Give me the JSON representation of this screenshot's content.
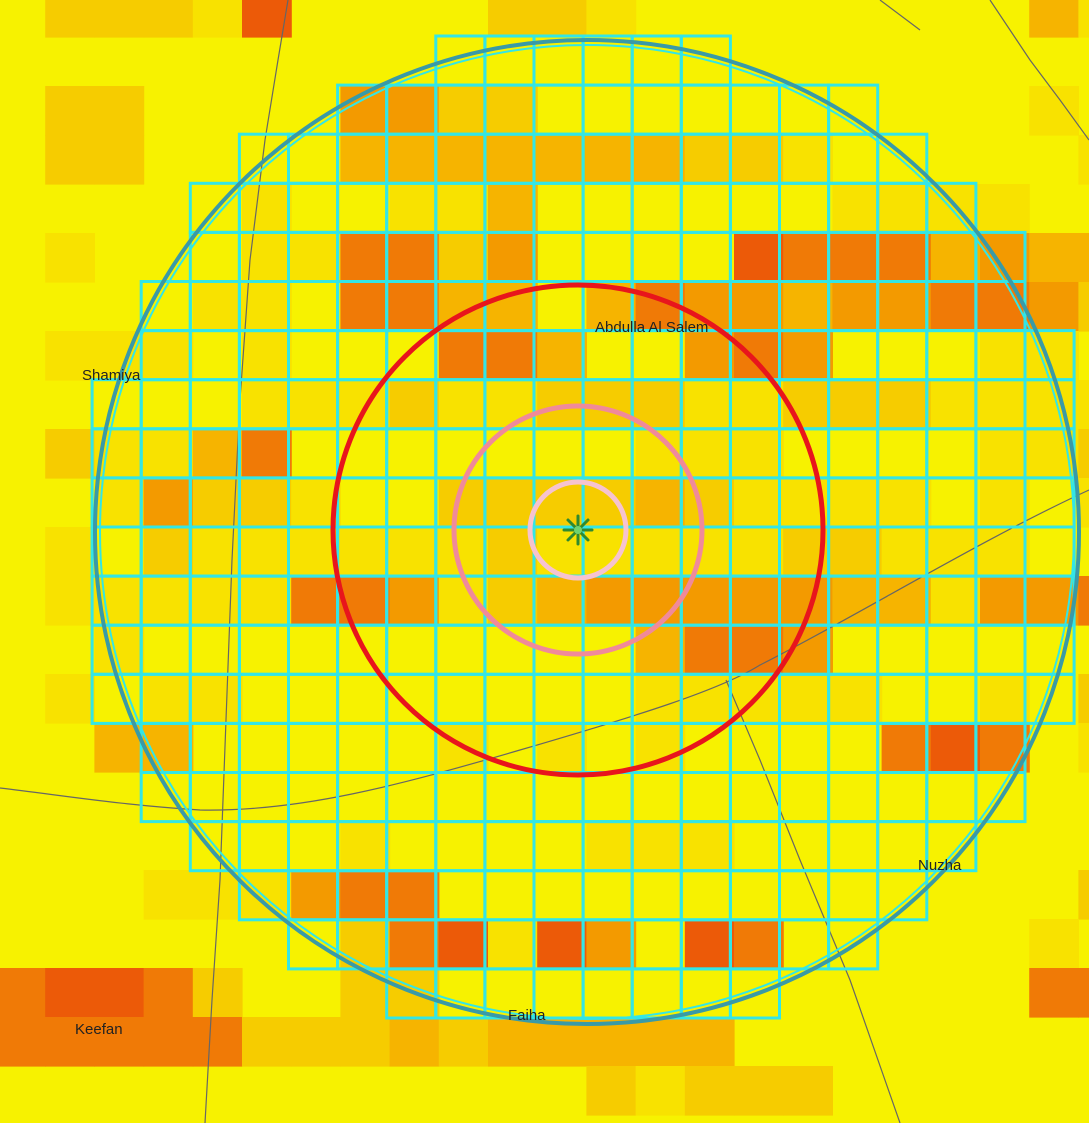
{
  "map": {
    "labels": [
      {
        "key": "abdulla",
        "text": "Abdulla Al Salem"
      },
      {
        "key": "shamiya",
        "text": "Shamiya"
      },
      {
        "key": "nuzha",
        "text": "Nuzha"
      },
      {
        "key": "keefan",
        "text": "Keefan"
      },
      {
        "key": "faiha",
        "text": "Faiha"
      }
    ],
    "colors": {
      "cyan_grid": "#33e6e6",
      "outer_ring": "#3a9aa6",
      "red_ring": "#e8151c",
      "pink_ring": "#f08a9a",
      "light_pink_ring": "#f6c3cf",
      "center_marker": "#3ab53a",
      "road": "#666666"
    },
    "heat_palette": [
      "#f7f200",
      "#f8e200",
      "#f6cc00",
      "#f6b400",
      "#f39a00",
      "#f07a06",
      "#ec5a08",
      "#ee2a00"
    ],
    "center_marker_icon": "asterisk-icon"
  }
}
